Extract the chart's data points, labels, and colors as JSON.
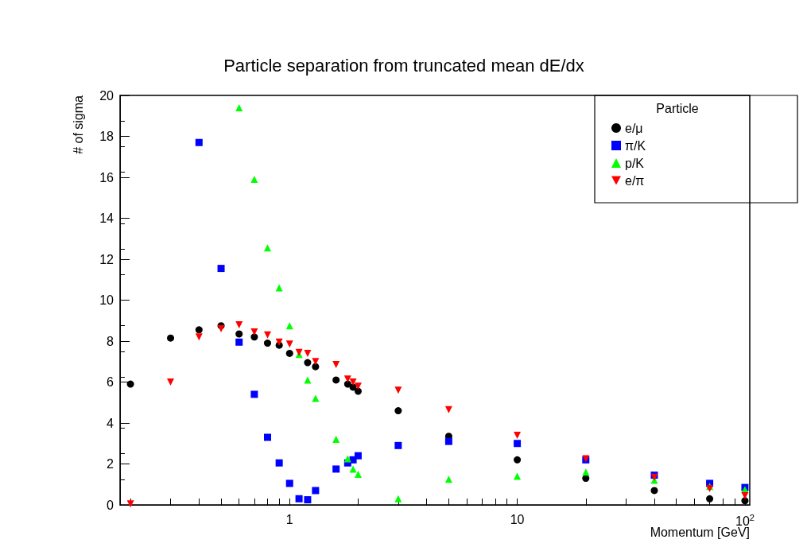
{
  "chart_data": {
    "type": "scatter",
    "title": "Particle separation from truncated mean dE/dx",
    "xlabel": "Momentum [GeV]",
    "ylabel": "# of sigma",
    "legend_title": "Particle",
    "legend": "top right",
    "log": "x",
    "grid": false,
    "xlim": [
      0.18,
      105
    ],
    "ylim": [
      0,
      20
    ],
    "xticks": [
      {
        "value": 0.2,
        "label": null
      },
      {
        "value": 0.3,
        "label": null
      },
      {
        "value": 0.4,
        "label": null
      },
      {
        "value": 0.5,
        "label": null
      },
      {
        "value": 0.6,
        "label": null
      },
      {
        "value": 0.7,
        "label": null
      },
      {
        "value": 0.8,
        "label": null
      },
      {
        "value": 0.9,
        "label": null
      },
      1,
      {
        "value": 2,
        "label": null
      },
      {
        "value": 3,
        "label": null
      },
      {
        "value": 4,
        "label": null
      },
      {
        "value": 5,
        "label": null
      },
      {
        "value": 6,
        "label": null
      },
      {
        "value": 7,
        "label": null
      },
      {
        "value": 8,
        "label": null
      },
      {
        "value": 9,
        "label": null
      },
      10,
      {
        "value": 20,
        "label": null
      },
      {
        "value": 30,
        "label": null
      },
      {
        "value": 40,
        "label": null
      },
      {
        "value": 50,
        "label": null
      },
      {
        "value": 60,
        "label": null
      },
      {
        "value": 70,
        "label": null
      },
      {
        "value": 80,
        "label": null
      },
      {
        "value": 90,
        "label": null
      },
      {
        "value": 100,
        "label": "10$^{2}$"
      }
    ],
    "yticks": [
      0,
      2,
      4,
      6,
      8,
      10,
      12,
      14,
      16,
      18,
      20
    ],
    "series": [
      {
        "name": "e/μ",
        "color": "#000000",
        "marker": "circle",
        "x": [
          0.2,
          0.3,
          0.4,
          0.5,
          0.6,
          0.7,
          0.8,
          0.9,
          1.0,
          1.2,
          1.3,
          1.6,
          1.8,
          1.9,
          2.0,
          3,
          5,
          10,
          20,
          40,
          70,
          100
        ],
        "values": [
          5.9,
          8.15,
          8.55,
          8.75,
          8.35,
          8.2,
          7.9,
          7.8,
          7.4,
          6.95,
          6.75,
          6.1,
          5.9,
          5.75,
          5.55,
          4.6,
          3.35,
          2.2,
          1.3,
          0.7,
          0.3,
          0.2
        ]
      },
      {
        "name": "π/K",
        "color": "#0000ff",
        "marker": "square",
        "x": [
          0.4,
          0.5,
          0.6,
          0.7,
          0.8,
          0.9,
          1.0,
          1.1,
          1.2,
          1.3,
          1.6,
          1.8,
          1.9,
          2.0,
          3,
          5,
          10,
          20,
          40,
          70,
          100
        ],
        "values": [
          17.7,
          11.55,
          7.95,
          5.4,
          3.3,
          2.05,
          1.05,
          0.3,
          0.25,
          0.7,
          1.75,
          2.05,
          2.2,
          2.4,
          2.9,
          3.1,
          3.0,
          2.2,
          1.45,
          1.05,
          0.85
        ]
      },
      {
        "name": "p/K",
        "color": "#00ff00",
        "marker": "triangle",
        "x": [
          0.6,
          0.7,
          0.8,
          0.9,
          1.0,
          1.1,
          1.2,
          1.3,
          1.6,
          1.8,
          1.9,
          2.0,
          3,
          5,
          10,
          20,
          40,
          70,
          100
        ],
        "values": [
          19.4,
          15.9,
          12.55,
          10.6,
          8.75,
          7.35,
          6.1,
          5.2,
          3.2,
          2.25,
          1.75,
          1.5,
          0.3,
          1.25,
          1.4,
          1.6,
          1.2,
          0.9,
          0.75
        ]
      },
      {
        "name": "e/π",
        "color": "#ff0000",
        "marker": "triangle-down",
        "x": [
          0.2,
          0.3,
          0.4,
          0.5,
          0.6,
          0.7,
          0.8,
          0.9,
          1.0,
          1.1,
          1.2,
          1.3,
          1.6,
          1.8,
          1.9,
          2.0,
          3,
          5,
          10,
          20,
          40,
          70,
          100
        ],
        "values": [
          0.05,
          6.0,
          8.2,
          8.6,
          8.8,
          8.45,
          8.3,
          7.95,
          7.85,
          7.45,
          7.4,
          7.0,
          6.85,
          6.15,
          6.0,
          5.8,
          5.6,
          4.65,
          3.4,
          2.25,
          1.35,
          0.8,
          0.45
        ]
      }
    ]
  }
}
